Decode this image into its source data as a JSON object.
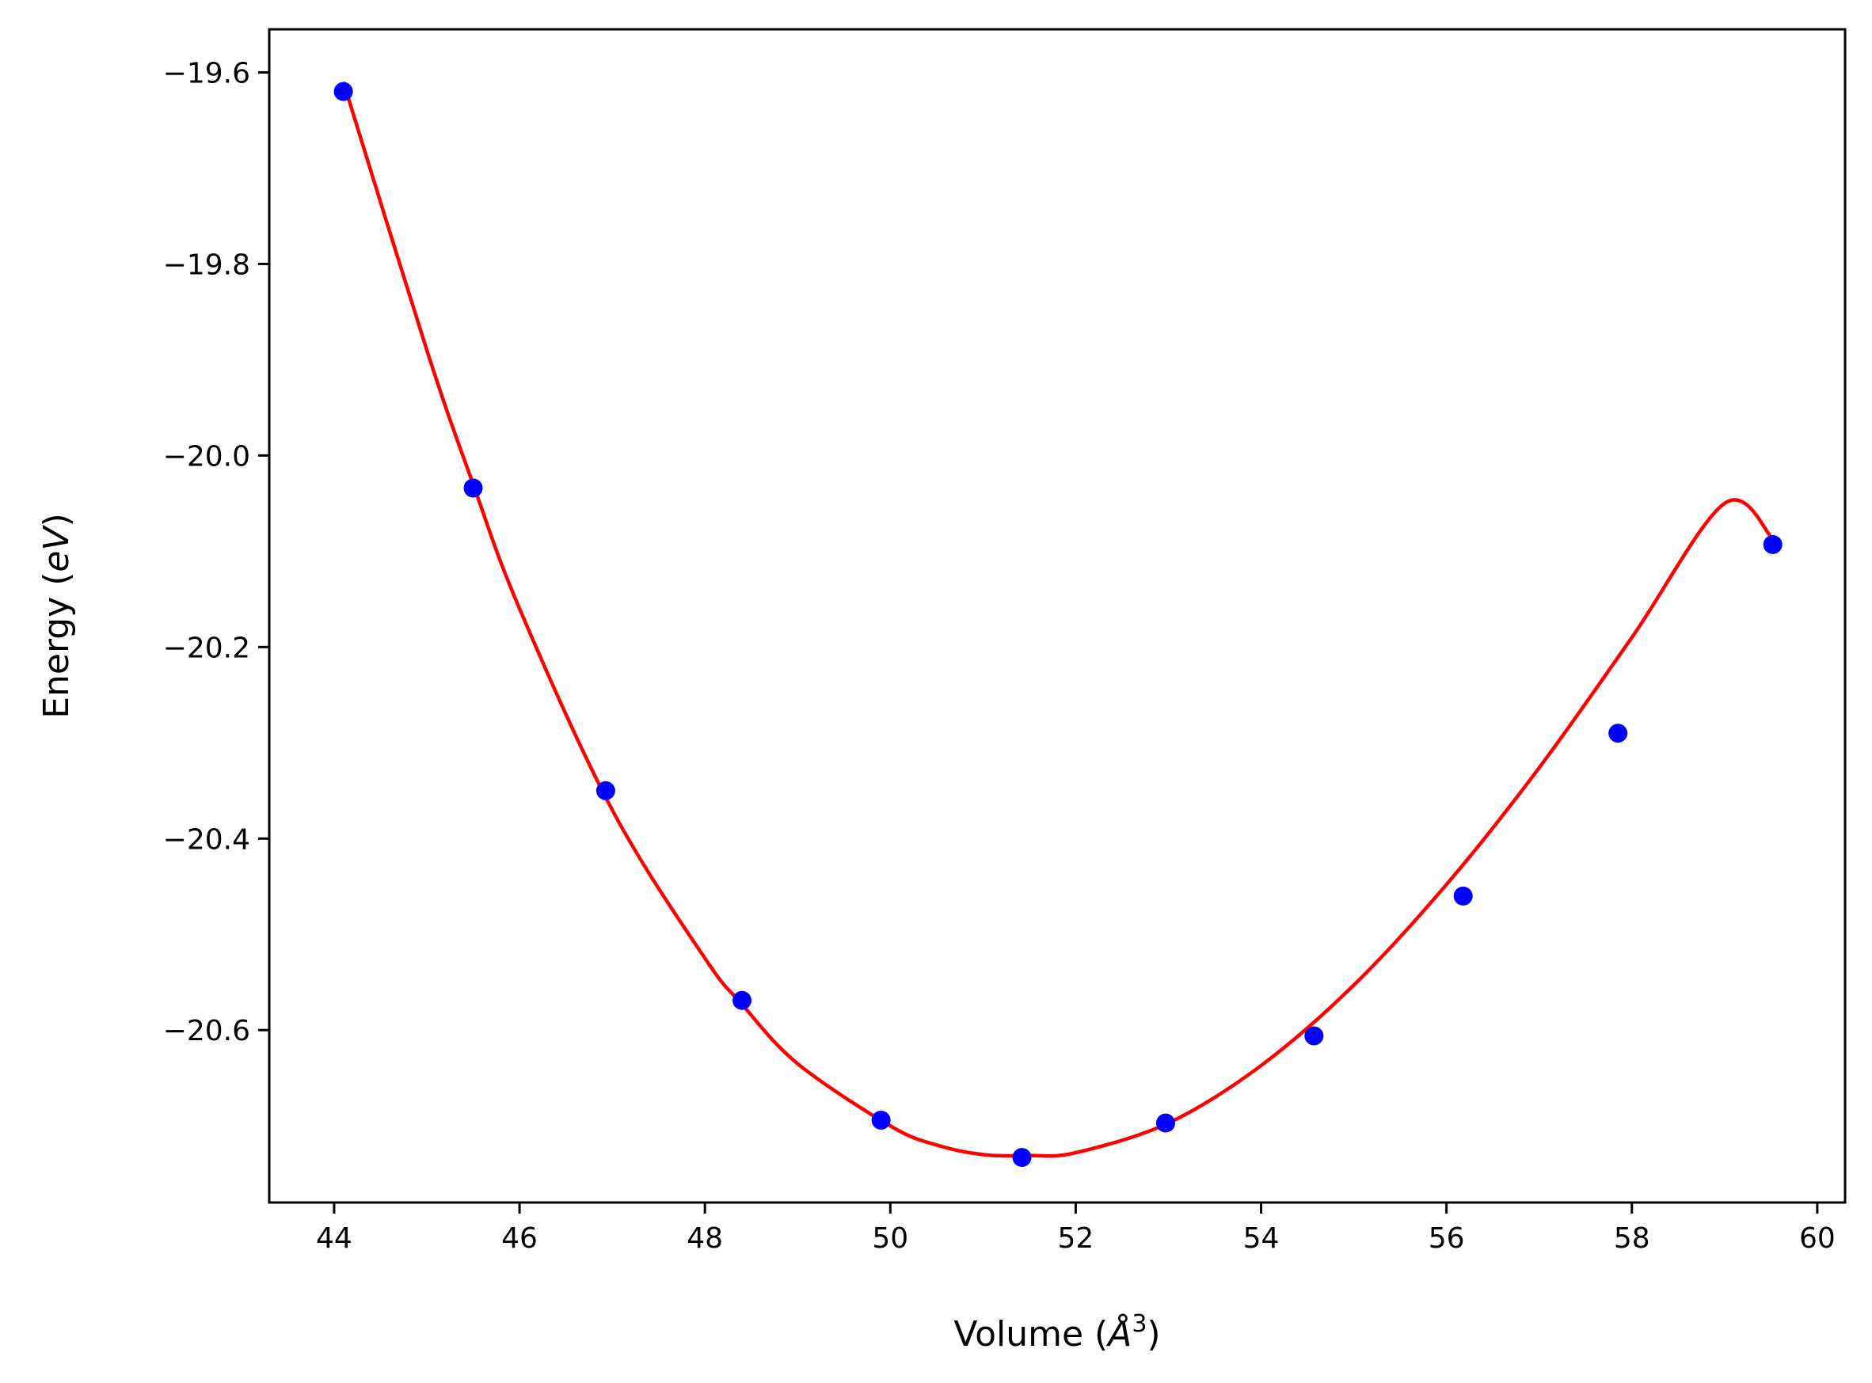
{
  "chart_data": {
    "type": "scatter",
    "title": "",
    "xlabel": "Volume (",
    "xlabel_symbol": "Å",
    "xlabel_sup": "3",
    "xlabel_close": ")",
    "ylabel": "Energy (",
    "ylabel_italic": "eV",
    "ylabel_close": ")",
    "xlim": [
      43.3,
      60.3
    ],
    "ylim": [
      -20.78,
      -19.555
    ],
    "xticks": [
      44,
      46,
      48,
      50,
      52,
      54,
      56,
      58,
      60
    ],
    "xtick_labels": [
      "44",
      "46",
      "48",
      "50",
      "52",
      "54",
      "56",
      "58",
      "60"
    ],
    "yticks": [
      -19.6,
      -19.8,
      -20.0,
      -20.2,
      -20.4,
      -20.6
    ],
    "ytick_labels": [
      "−19.6",
      "−19.8",
      "−20.0",
      "−20.2",
      "−20.4",
      "−20.6"
    ],
    "grid": false,
    "legend": "none",
    "series": [
      {
        "kind": "points",
        "color": "#0000ff",
        "x": [
          44.1,
          45.5,
          46.93,
          48.4,
          49.9,
          51.42,
          52.97,
          54.57,
          56.18,
          57.85,
          59.52
        ],
        "y": [
          -19.62,
          -20.034,
          -20.35,
          -20.569,
          -20.694,
          -20.733,
          -20.697,
          -20.606,
          -20.46,
          -20.29,
          -20.093
        ]
      },
      {
        "kind": "fit_curve",
        "color": "#ff0000",
        "x": [
          44.1,
          45.0,
          45.5,
          46.0,
          47.0,
          48.0,
          48.4,
          49.0,
          50.0,
          50.5,
          51.0,
          51.5,
          52.0,
          53.0,
          54.0,
          55.0,
          56.0,
          57.0,
          58.0,
          59.0,
          59.52
        ],
        "y": [
          -19.61,
          -19.89,
          -20.03,
          -20.16,
          -20.37,
          -20.525,
          -20.573,
          -20.635,
          -20.7,
          -20.72,
          -20.73,
          -20.731,
          -20.728,
          -20.697,
          -20.637,
          -20.553,
          -20.448,
          -20.326,
          -20.19,
          -20.05,
          -20.087
        ]
      }
    ]
  }
}
